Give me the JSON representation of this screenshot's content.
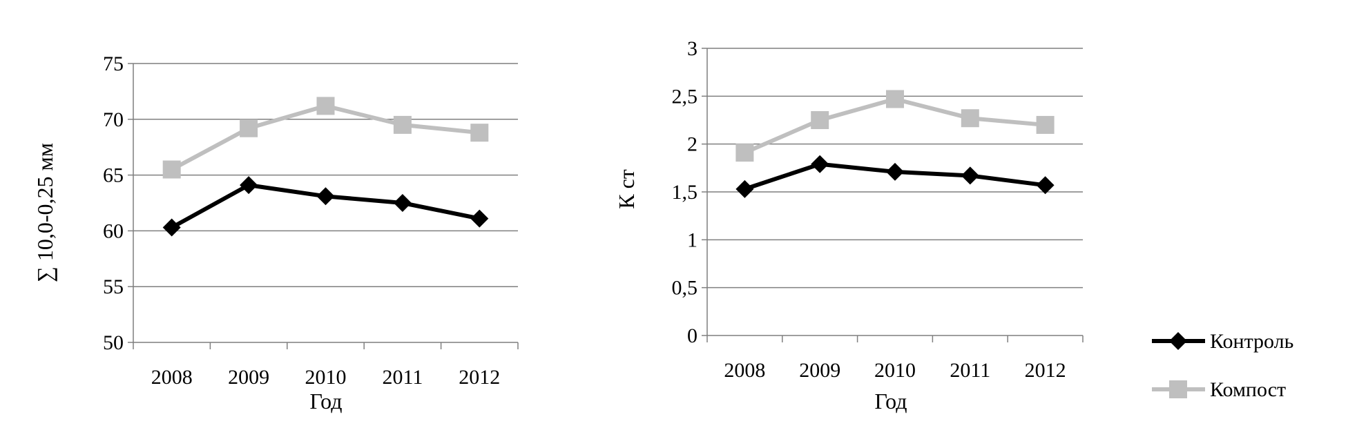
{
  "chart_data": [
    {
      "type": "line",
      "title": "",
      "xlabel": "Год",
      "ylabel": "∑ 10,0-0,25 мм",
      "categories": [
        "2008",
        "2009",
        "2010",
        "2011",
        "2012"
      ],
      "ylim": [
        50,
        75
      ],
      "yticks": [
        "50",
        "55",
        "60",
        "65",
        "70",
        "75"
      ],
      "grid": true,
      "series": [
        {
          "name": "Контроль",
          "values": [
            60.3,
            64.1,
            63.1,
            62.5,
            61.1
          ],
          "color": "#000000",
          "marker": "diamond"
        },
        {
          "name": "Компост",
          "values": [
            65.5,
            69.2,
            71.2,
            69.5,
            68.8
          ],
          "color": "#bfbfbf",
          "marker": "square"
        }
      ]
    },
    {
      "type": "line",
      "title": "",
      "xlabel": "Год",
      "ylabel": "К ст",
      "categories": [
        "2008",
        "2009",
        "2010",
        "2011",
        "2012"
      ],
      "ylim": [
        0,
        3
      ],
      "yticks": [
        "0",
        "0,5",
        "1",
        "1,5",
        "2",
        "2,5",
        "3"
      ],
      "grid": true,
      "series": [
        {
          "name": "Контроль",
          "values": [
            1.53,
            1.79,
            1.71,
            1.67,
            1.57
          ],
          "color": "#000000",
          "marker": "diamond"
        },
        {
          "name": "Компост",
          "values": [
            1.91,
            2.25,
            2.47,
            2.27,
            2.2
          ],
          "color": "#bfbfbf",
          "marker": "square"
        }
      ]
    }
  ],
  "legend": {
    "placement": "right",
    "items": [
      {
        "label": "Контроль",
        "color": "#000000",
        "marker": "diamond-icon"
      },
      {
        "label": "Компост",
        "color": "#bfbfbf",
        "marker": "square-icon"
      }
    ]
  }
}
